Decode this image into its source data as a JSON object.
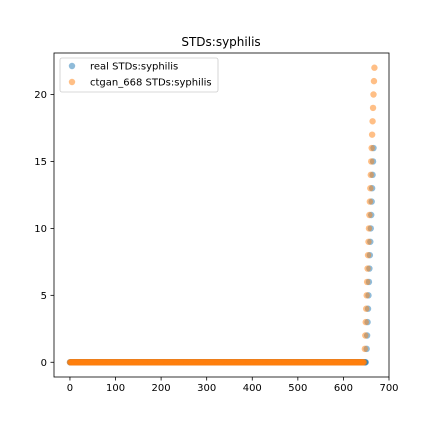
{
  "chart_data": {
    "type": "scatter",
    "title": "STDs:syphilis",
    "xlabel": "",
    "ylabel": "",
    "xlim": [
      -35,
      700
    ],
    "ylim": [
      -1.1,
      23.1
    ],
    "xticks": [
      0,
      100,
      200,
      300,
      400,
      500,
      600,
      700
    ],
    "yticks": [
      0,
      5,
      10,
      15,
      20
    ],
    "legend_position": "top-left",
    "series": [
      {
        "name": "real STDs:syphilis",
        "color": "#1f77b4",
        "alpha": 0.5,
        "zero_count": 650,
        "points": [
          [
            651,
            1
          ],
          [
            652,
            2
          ],
          [
            653,
            3
          ],
          [
            654,
            4
          ],
          [
            655,
            5
          ],
          [
            656,
            6
          ],
          [
            657,
            7
          ],
          [
            658,
            8
          ],
          [
            659,
            9
          ],
          [
            660,
            10
          ],
          [
            661,
            11
          ],
          [
            662,
            12
          ],
          [
            663,
            13
          ],
          [
            664,
            14
          ],
          [
            665,
            15
          ],
          [
            666,
            16
          ]
        ]
      },
      {
        "name": "ctgan_668 STDs:syphilis",
        "color": "#ff7f0e",
        "alpha": 0.5,
        "zero_count": 646,
        "points": [
          [
            647,
            1
          ],
          [
            648,
            2
          ],
          [
            649,
            3
          ],
          [
            650,
            4
          ],
          [
            651,
            5
          ],
          [
            652,
            6
          ],
          [
            653,
            7
          ],
          [
            654,
            8
          ],
          [
            655,
            9
          ],
          [
            656,
            10
          ],
          [
            657,
            11
          ],
          [
            658,
            12
          ],
          [
            659,
            13
          ],
          [
            660,
            14
          ],
          [
            661,
            15
          ],
          [
            662,
            16
          ],
          [
            663,
            17
          ],
          [
            664,
            18
          ],
          [
            665,
            19
          ],
          [
            666,
            20
          ],
          [
            667,
            21
          ],
          [
            668,
            22
          ]
        ]
      }
    ]
  }
}
